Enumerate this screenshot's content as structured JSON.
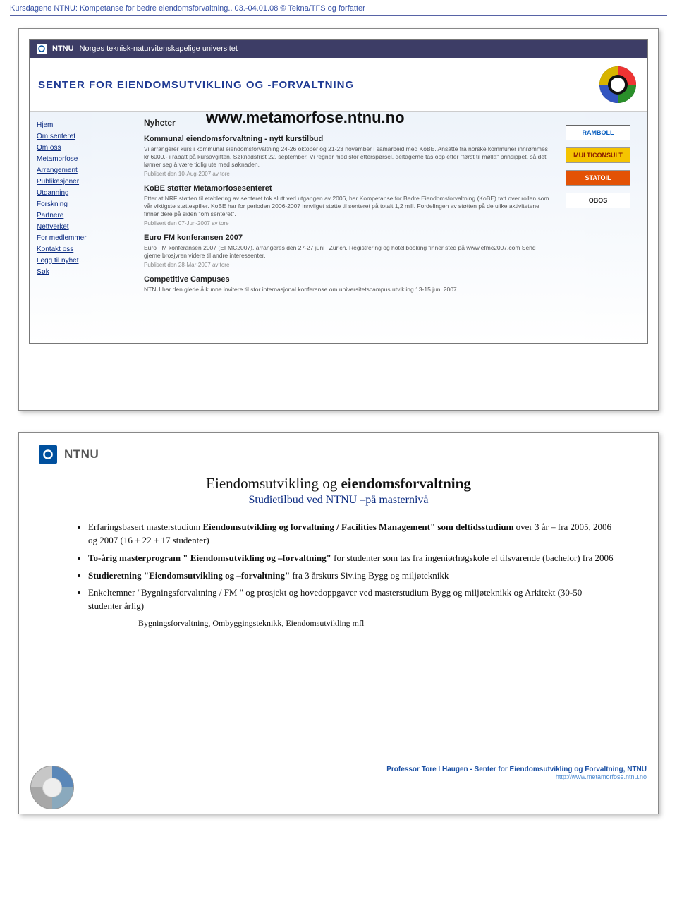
{
  "header": {
    "left": "Kursdagene NTNU: Kompetanse for bedre eiendomsforvaltning.. 03.-04.01.08 © Tekna/TFS og forfatter",
    "right": ""
  },
  "slide1": {
    "topbar_brand": "NTNU",
    "topbar_text": "Norges teknisk-naturvitenskapelige universitet",
    "center_title": "SENTER FOR EIENDOMSUTVIKLING OG -FORVALTNING",
    "url": "www.metamorfose.ntnu.no",
    "nav": [
      "Hjem",
      "Om senteret",
      "Om oss",
      "Metamorfose",
      "Arrangement",
      "Publikasjoner",
      "Utdanning",
      "Forskning",
      "Partnere",
      "Nettverket",
      "For medlemmer",
      "Kontakt oss",
      "Legg til nyhet",
      "Søk"
    ],
    "main_heading": "Nyheter",
    "news": [
      {
        "title": "Kommunal eiendomsforvaltning - nytt kurstilbud",
        "body": "Vi arrangerer kurs i kommunal eiendomsforvaltning 24-26 oktober og 21-23 november i samarbeid med KoBE. Ansatte fra norske kommuner innrømmes kr 6000,- i rabatt på kursavgiften. Søknadsfrist 22. september. Vi regner med stor etterspørsel, deltagerne tas opp etter \"først til mølla\" prinsippet, så det lønner seg å være tidlig ute med søknaden.",
        "pub": "Publisert den 10-Aug-2007 av tore"
      },
      {
        "title": "KoBE støtter Metamorfosesenteret",
        "body": "Etter at NRF støtten til etablering av senteret tok slutt ved utgangen av 2006, har Kompetanse for Bedre Eiendomsforvaltning (KoBE) tatt over rollen som vår viktigste støttespiller. KoBE har for perioden 2006-2007 innvilget støtte til senteret på totalt 1,2 mill. Fordelingen av støtten på de ulike aktivitetene finner dere på siden \"om senteret\".",
        "pub": "Publisert den 07-Jun-2007 av tore"
      },
      {
        "title": "Euro FM konferansen 2007",
        "body": "Euro FM konferansen 2007 (EFMC2007), arrangeres den 27-27 juni i Zurich. Registrering og hotellbooking finner sted på www.efmc2007.com Send gjerne brosjyren videre til andre interessenter.",
        "pub": "Publisert den 28-Mar-2007 av tore"
      },
      {
        "title": "Competitive Campuses",
        "body": "NTNU har den glede å kunne invitere til stor internasjonal konferanse om universitetscampus utvikling 13-15 juni 2007",
        "pub": ""
      }
    ],
    "sponsors": [
      {
        "label": "RAMBOLL",
        "bg": "#ffffff",
        "color": "#0a5fbf",
        "border": "#666"
      },
      {
        "label": "MULTICONSULT",
        "bg": "#f5c400",
        "color": "#8a1a00",
        "border": "#999"
      },
      {
        "label": "STATOIL",
        "bg": "#e35205",
        "color": "#ffffff",
        "border": "#999"
      },
      {
        "label": "OBOS",
        "bg": "#ffffff",
        "color": "#222",
        "border": "#fff"
      }
    ]
  },
  "slide2": {
    "logo_text": "NTNU",
    "title_line1": "Eiendomsutvikling og eiendomsforvaltning",
    "title_line2": "Studietilbud ved NTNU –på masternivå",
    "bullets": [
      {
        "html": "Erfaringsbasert masterstudium <b>Eiendomsutvikling og forvaltning / Facilities Management\" som deltidsstudium</b> over 3 år – fra 2005, 2006 og 2007 (16 + 22 + 17 studenter)"
      },
      {
        "html": "<b>To-årig masterprogram \" Eiendomsutvikling og –forvaltning\"</b> for studenter som tas fra ingeniørhøgskole el tilsvarende (bachelor) fra 2006"
      },
      {
        "html": "<b>Studieretning \"Eiendomsutvikling og –forvaltning\"</b> fra 3 årskurs Siv.ing Bygg og miljøteknikk"
      },
      {
        "html": "Enkeltemner \"Bygningsforvaltning / FM \" og prosjekt og hovedoppgaver ved masterstudium Bygg og miljøteknikk og Arkitekt (30-50 studenter årlig)"
      }
    ],
    "sub_bullet": "Bygningsforvaltning, Ombyggingsteknikk, Eiendomsutvikling mfl",
    "footer_line1": "Professor Tore I Haugen - Senter for Eiendomsutvikling og Forvaltning, NTNU",
    "footer_line2": "http://www.metamorfose.ntnu.no"
  },
  "colors": {
    "header_text": "#3751a6",
    "ntnu_blue": "#00509e",
    "link": "#0a2a80"
  }
}
